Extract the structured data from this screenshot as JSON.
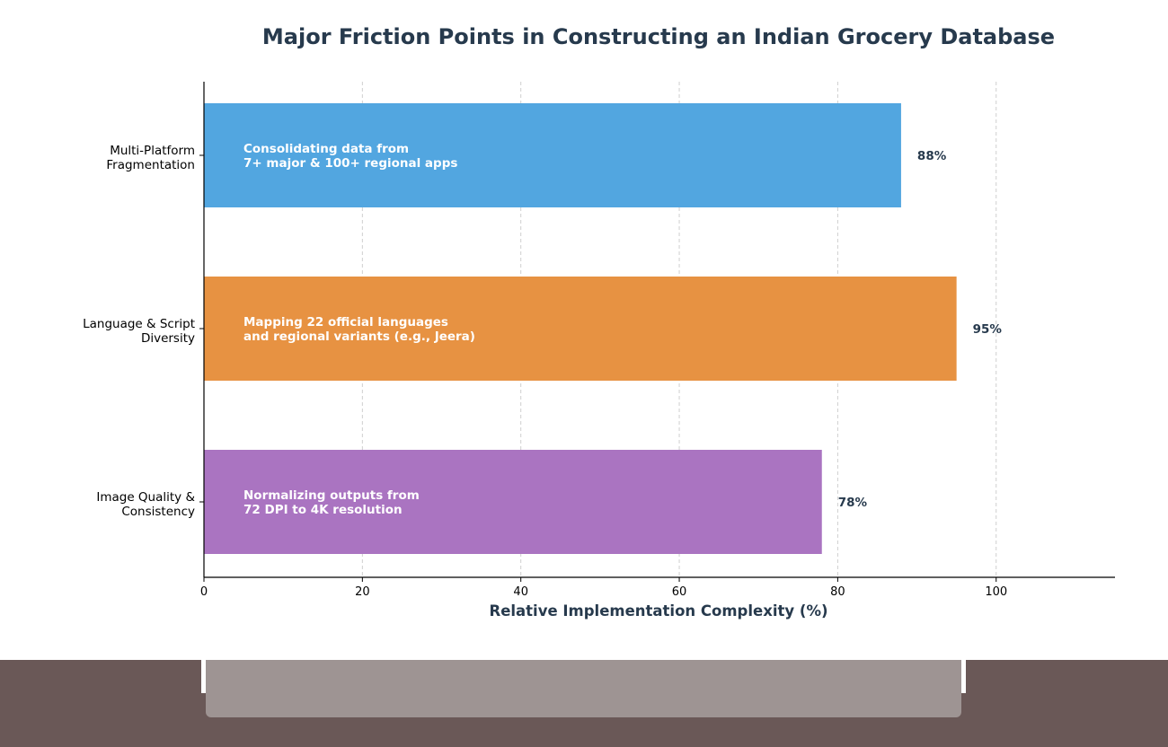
{
  "chart_data": {
    "type": "bar",
    "orientation": "horizontal",
    "title": "Major Friction Points in Constructing an Indian Grocery Database",
    "xlabel": "Relative Implementation Complexity (%)",
    "ylabel": "",
    "xlim": [
      0,
      115
    ],
    "xticks": [
      0,
      20,
      40,
      60,
      80,
      100
    ],
    "grid": "x-dashed",
    "categories": [
      "Multi-Platform\nFragmentation",
      "Language & Script\nDiversity",
      "Image Quality &\nConsistency"
    ],
    "values": [
      88,
      95,
      78
    ],
    "value_labels": [
      "88%",
      "95%",
      "78%"
    ],
    "annotations": [
      "Consolidating data from\n7+ major & 100+ regional apps",
      "Mapping 22 official languages\nand regional variants (e.g., Jeera)",
      "Normalizing outputs from\n72 DPI to 4K resolution"
    ],
    "colors": [
      "#52a6e0",
      "#e79242",
      "#aa74c1"
    ],
    "title_color": "#273a4d",
    "label_color": "#273a4d"
  }
}
